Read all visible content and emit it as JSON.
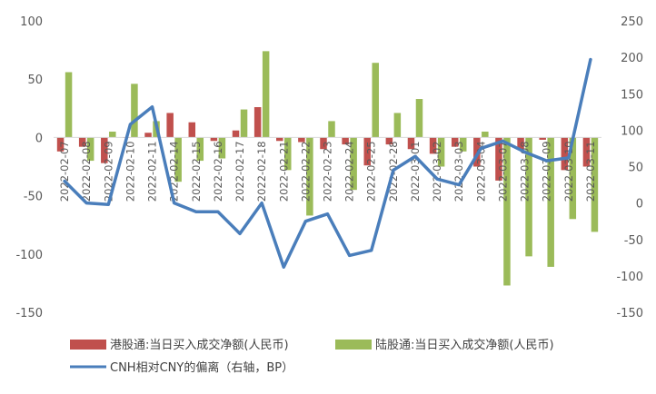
{
  "chart_data": {
    "type": "bar",
    "categories": [
      "2022-02-07",
      "2022-02-08",
      "2022-02-09",
      "2022-02-10",
      "2022-02-11",
      "2022-02-14",
      "2022-02-15",
      "2022-02-16",
      "2022-02-17",
      "2022-02-18",
      "2022-02-21",
      "2022-02-22",
      "2022-02-23",
      "2022-02-24",
      "2022-02-25",
      "2022-02-28",
      "2022-03-01",
      "2022-03-02",
      "2022-03-03",
      "2022-03-04",
      "2022-03-07",
      "2022-03-08",
      "2022-03-09",
      "2022-03-10",
      "2022-03-11"
    ],
    "x_tick_labels": [
      "2022-02-07",
      "2022-02-08",
      "2022-02-09",
      "2022-02-10",
      "2022-02-11",
      "2022-02-14",
      "2022-02-15",
      "2022-02-16",
      "2022-02-17",
      "2022-02-18",
      "2022-02-21",
      "2022-02-22",
      "2022-02-23",
      "2022-02-24",
      "2022-02-25",
      "2022-02-28",
      "2022-03-01",
      "2022-03-02",
      "2022-03-03",
      "2022-03-04",
      "2022-03-07",
      "2022-03-08",
      "2022-03-09",
      "2022-03-10",
      "2022-03-11"
    ],
    "y_ticks": [
      100,
      50,
      0,
      -50,
      -100,
      -150
    ],
    "y2_ticks": [
      250,
      200,
      150,
      100,
      50,
      0,
      -50,
      -100,
      -150
    ],
    "ylim": [
      -150,
      100
    ],
    "y2lim": [
      -150,
      250
    ],
    "grid": false,
    "legend_position": "bottom",
    "series": [
      {
        "name": "港股通:当日买入成交净额(人民币)",
        "type": "bar",
        "axis": "left",
        "color": "#C0504D",
        "values": [
          -12,
          -8,
          -22,
          0,
          4,
          21,
          13,
          -3,
          6,
          26,
          -3,
          -4,
          -10,
          -6,
          -24,
          -6,
          -10,
          -14,
          -8,
          -25,
          -37,
          -10,
          -2,
          -28,
          -25
        ]
      },
      {
        "name": "陆股通:当日买入成交净额(人民币)",
        "type": "bar",
        "axis": "left",
        "color": "#9BBB59",
        "values": [
          56,
          -20,
          5,
          46,
          14,
          -38,
          -20,
          -18,
          24,
          74,
          -28,
          -67,
          14,
          -45,
          64,
          21,
          33,
          -25,
          -12,
          5,
          -127,
          -102,
          -111,
          -70,
          -81
        ]
      },
      {
        "name": "CNH相对CNY的偏离（右轴，BP）",
        "type": "line",
        "axis": "right",
        "color": "#4A7EBB",
        "values": [
          30,
          0,
          -2,
          108,
          132,
          0,
          -12,
          -12,
          -42,
          0,
          -88,
          -25,
          -15,
          -72,
          -65,
          45,
          64,
          33,
          25,
          75,
          85,
          70,
          58,
          62,
          197
        ]
      }
    ]
  }
}
